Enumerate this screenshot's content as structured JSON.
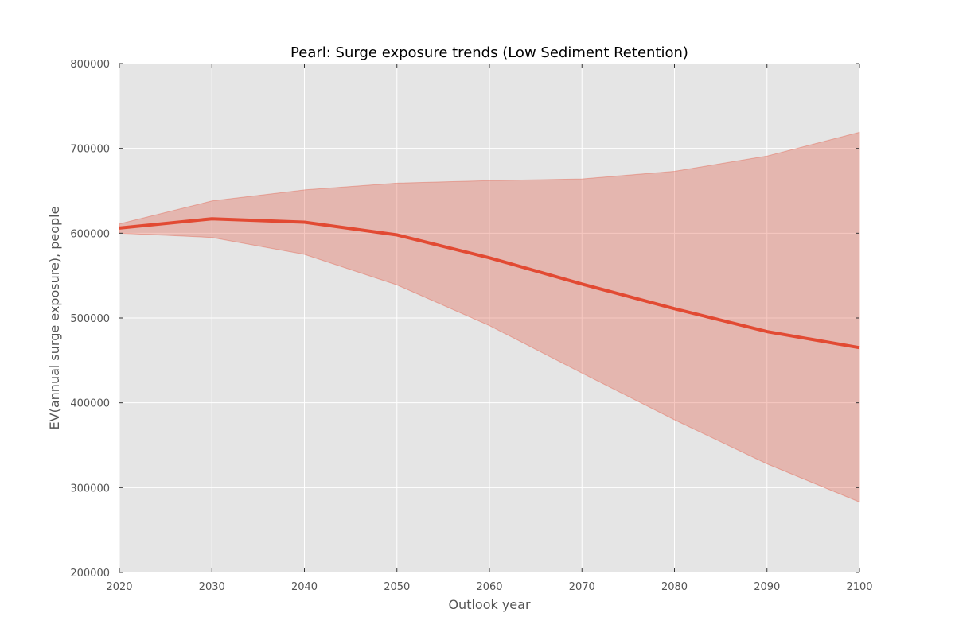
{
  "chart_data": {
    "type": "line",
    "title": "Pearl: Surge exposure trends (Low Sediment Retention)",
    "xlabel": "Outlook year",
    "ylabel": "EV(annual surge exposure), people",
    "xlim": [
      2020,
      2100
    ],
    "ylim": [
      200000,
      800000
    ],
    "x_ticks": [
      "2020",
      "2030",
      "2040",
      "2050",
      "2060",
      "2070",
      "2080",
      "2090",
      "2100"
    ],
    "y_ticks": [
      "200000",
      "300000",
      "400000",
      "500000",
      "600000",
      "700000",
      "800000"
    ],
    "x": [
      2020,
      2030,
      2040,
      2050,
      2060,
      2070,
      2080,
      2090,
      2100
    ],
    "series": [
      {
        "values": [
          606000,
          617000,
          613000,
          598000,
          571000,
          540000,
          511000,
          484000,
          465000
        ]
      }
    ],
    "band": {
      "upper": [
        611000,
        638000,
        651000,
        659000,
        662000,
        664000,
        673000,
        691000,
        719000
      ],
      "lower": [
        600000,
        595000,
        575000,
        539000,
        491000,
        435000,
        380000,
        328000,
        283000
      ]
    },
    "grid": true,
    "colors": {
      "plot_background": "#e5e5e5",
      "grid": "#ffffff",
      "line": "#e24a33",
      "band_fill": "#e24a33",
      "band_opacity": 0.3,
      "text": "#555555",
      "title": "#000000"
    }
  }
}
